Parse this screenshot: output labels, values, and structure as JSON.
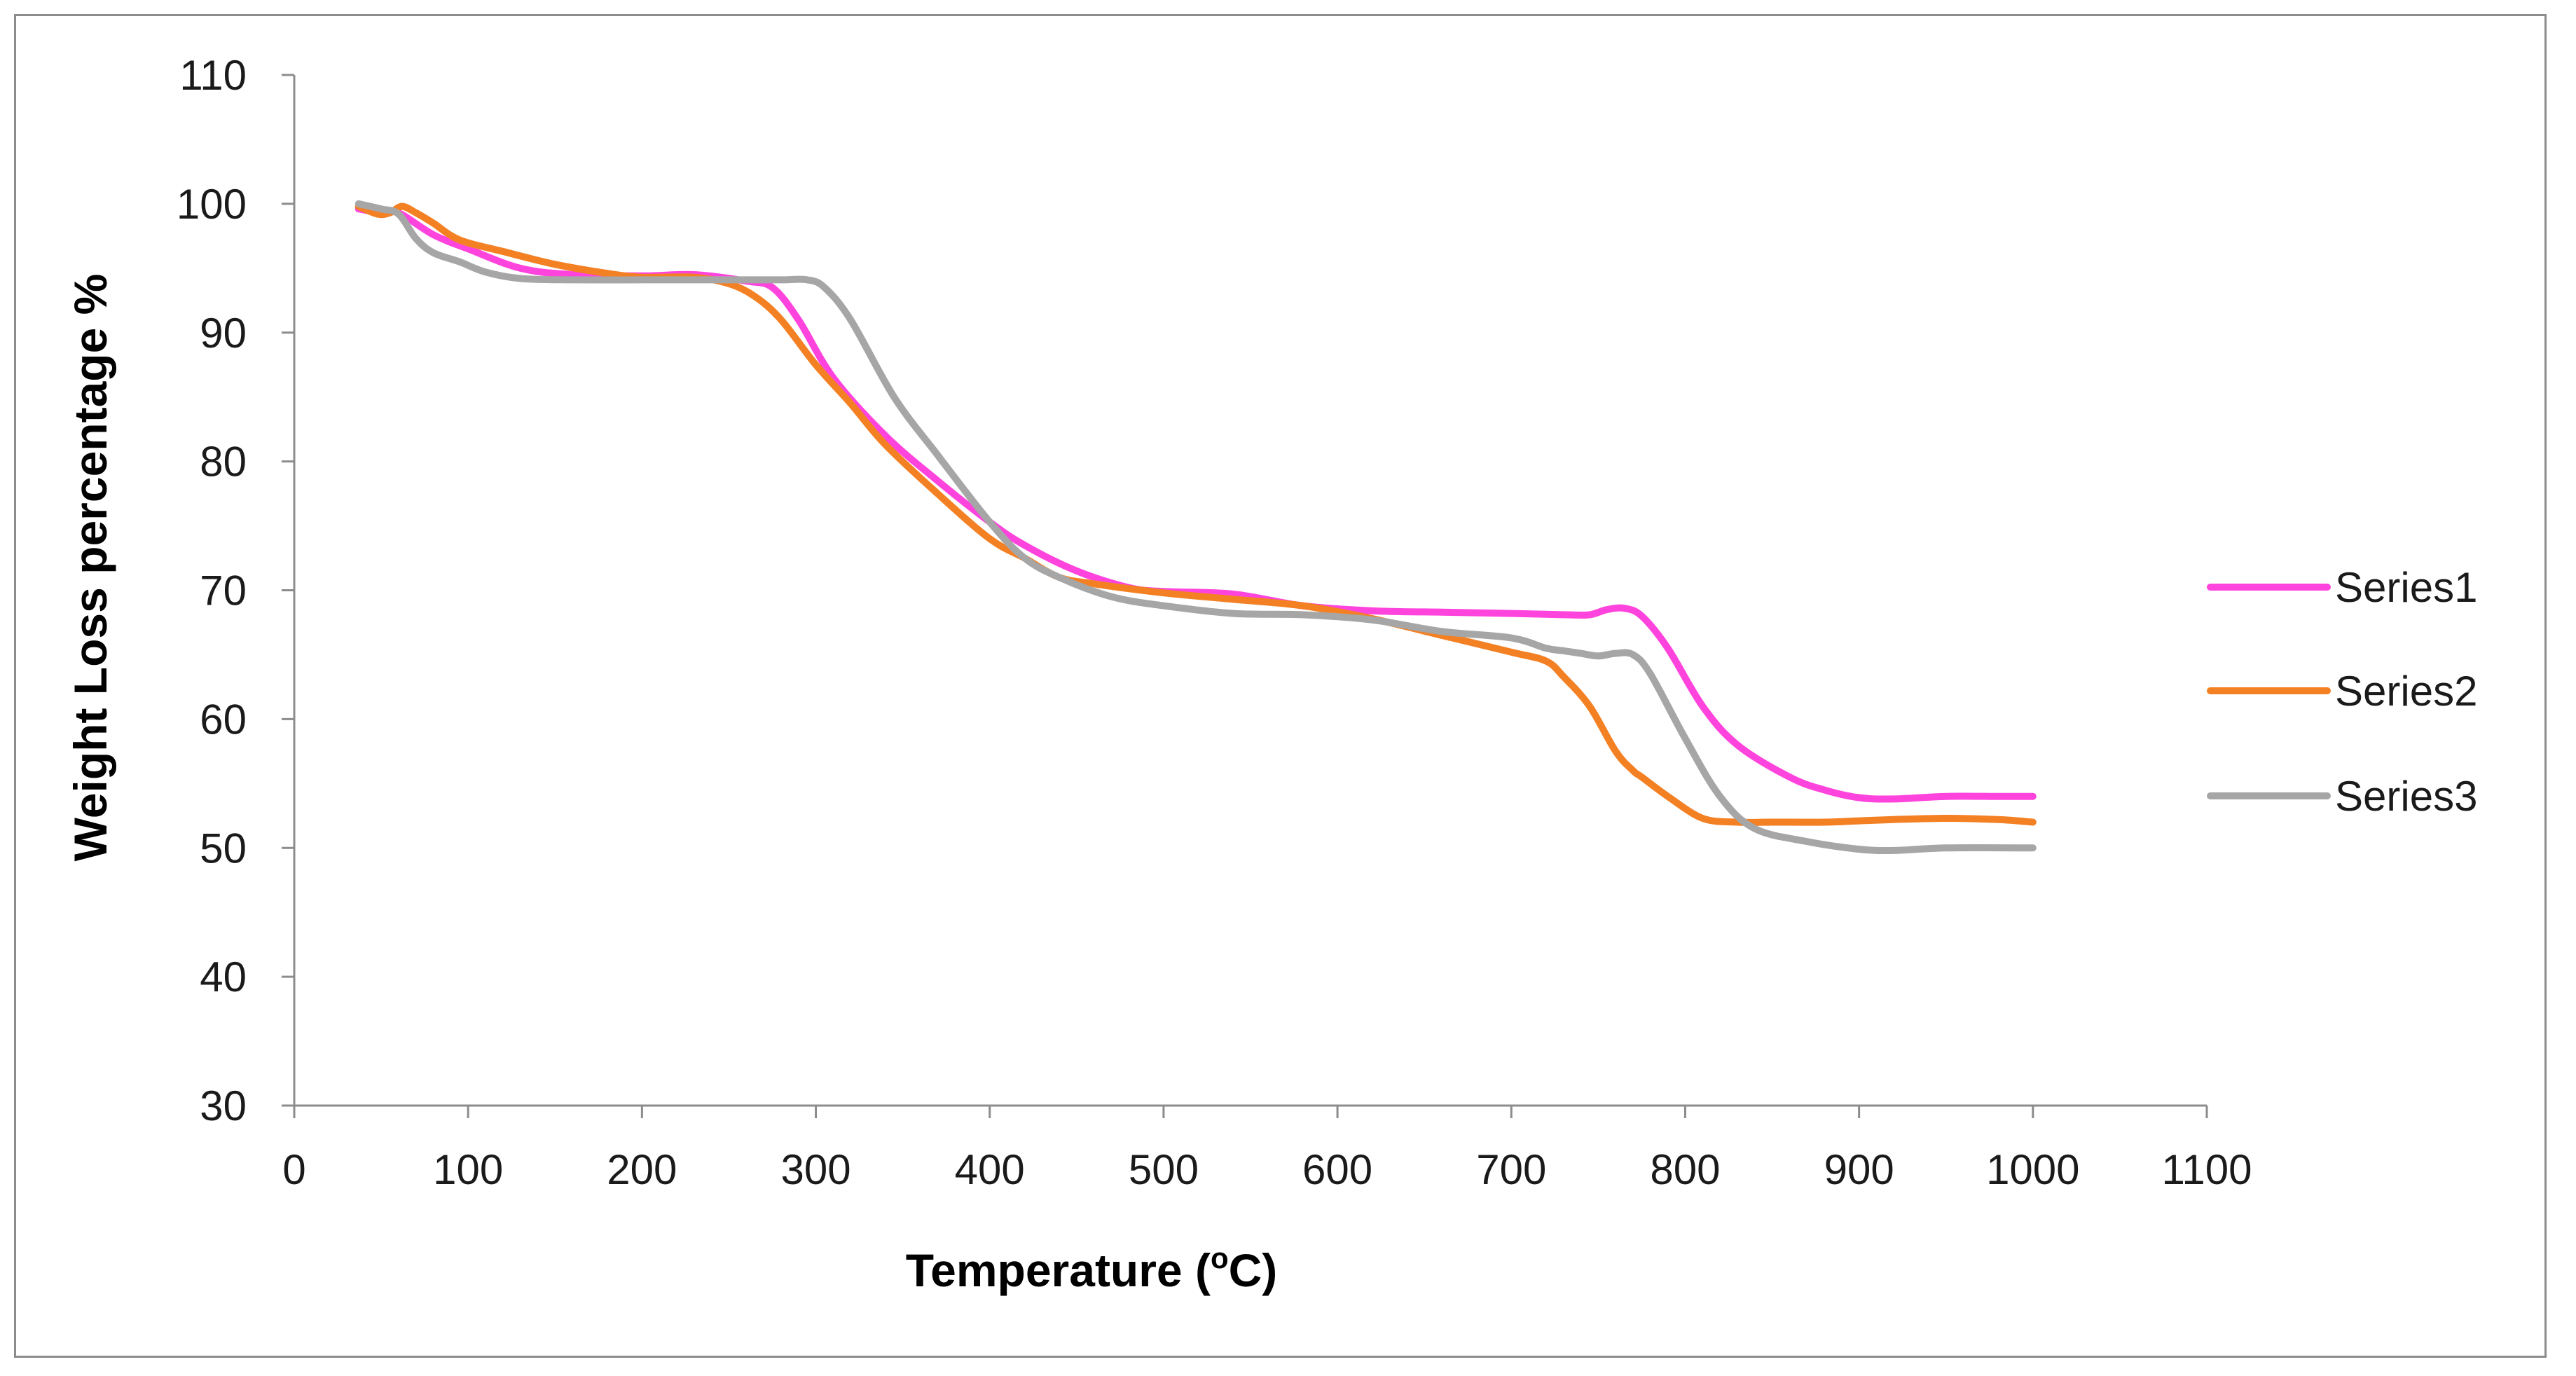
{
  "chart_data": {
    "type": "line",
    "title": "",
    "xlabel": "Temperature (",
    "xlabel_superscript": "o",
    "xlabel_unit": "C)",
    "ylabel": "Weight Loss percentage %",
    "xlim": [
      0,
      1100
    ],
    "ylim": [
      30,
      110
    ],
    "xticks": [
      "0",
      "100",
      "200",
      "300",
      "400",
      "500",
      "600",
      "700",
      "800",
      "900",
      "1000",
      "1100"
    ],
    "yticks": [
      "30",
      "40",
      "50",
      "60",
      "70",
      "80",
      "90",
      "100",
      "110"
    ],
    "grid": false,
    "legend_position": "right",
    "series": [
      {
        "name": "Series1",
        "color": "#ff44dd",
        "x": [
          37,
          50,
          60,
          80,
          100,
          130,
          160,
          200,
          230,
          260,
          275,
          290,
          310,
          340,
          370,
          400,
          420,
          450,
          480,
          500,
          540,
          580,
          620,
          660,
          700,
          730,
          745,
          755,
          765,
          775,
          790,
          810,
          830,
          860,
          880,
          900,
          920,
          950,
          980,
          1000
        ],
        "y": [
          99.6,
          99.3,
          99.3,
          97.6,
          96.5,
          95,
          94.5,
          94.4,
          94.5,
          94,
          93.5,
          91,
          86.5,
          82,
          78.5,
          75.3,
          73.5,
          71.5,
          70.2,
          69.9,
          69.7,
          68.8,
          68.4,
          68.3,
          68.2,
          68.1,
          68.1,
          68.5,
          68.6,
          68,
          65.5,
          61,
          58,
          55.5,
          54.5,
          53.9,
          53.8,
          54,
          54,
          54
        ]
      },
      {
        "name": "Series2",
        "color": "#f48024",
        "x": [
          37,
          48,
          55,
          62,
          70,
          80,
          95,
          120,
          150,
          180,
          200,
          230,
          250,
          265,
          280,
          300,
          320,
          340,
          370,
          400,
          420,
          440,
          460,
          500,
          540,
          580,
          620,
          660,
          700,
          720,
          730,
          745,
          760,
          770,
          775,
          790,
          810,
          830,
          850,
          880,
          900,
          920,
          950,
          980,
          1000
        ],
        "y": [
          99.8,
          99.2,
          99.3,
          99.8,
          99.3,
          98.5,
          97.2,
          96.3,
          95.3,
          94.6,
          94.3,
          94.3,
          93.8,
          92.8,
          91,
          87.5,
          84.5,
          81.3,
          77.5,
          74,
          72.5,
          71,
          70.5,
          69.8,
          69.3,
          68.8,
          67.8,
          66.5,
          65.2,
          64.5,
          63.3,
          61,
          57.5,
          56,
          55.5,
          54,
          52.3,
          52,
          52,
          52,
          52.1,
          52.2,
          52.3,
          52.2,
          52
        ]
      },
      {
        "name": "Series3",
        "color": "#a6a6a6",
        "x": [
          37,
          50,
          60,
          70,
          80,
          95,
          110,
          130,
          160,
          200,
          230,
          260,
          280,
          295,
          305,
          320,
          345,
          370,
          400,
          420,
          440,
          470,
          500,
          540,
          580,
          620,
          660,
          700,
          720,
          730,
          740,
          750,
          760,
          770,
          780,
          800,
          820,
          840,
          870,
          900,
          920,
          950,
          1000
        ],
        "y": [
          100,
          99.6,
          99.2,
          97.3,
          96.2,
          95.5,
          94.7,
          94.2,
          94.1,
          94.1,
          94.1,
          94.1,
          94.1,
          94.1,
          93.5,
          91,
          85,
          80.5,
          75.3,
          72.5,
          71,
          69.5,
          68.8,
          68.2,
          68.1,
          67.7,
          66.8,
          66.3,
          65.5,
          65.3,
          65.1,
          64.9,
          65.1,
          65,
          63.5,
          58.5,
          54,
          51.5,
          50.5,
          49.9,
          49.8,
          50,
          50
        ]
      }
    ]
  }
}
